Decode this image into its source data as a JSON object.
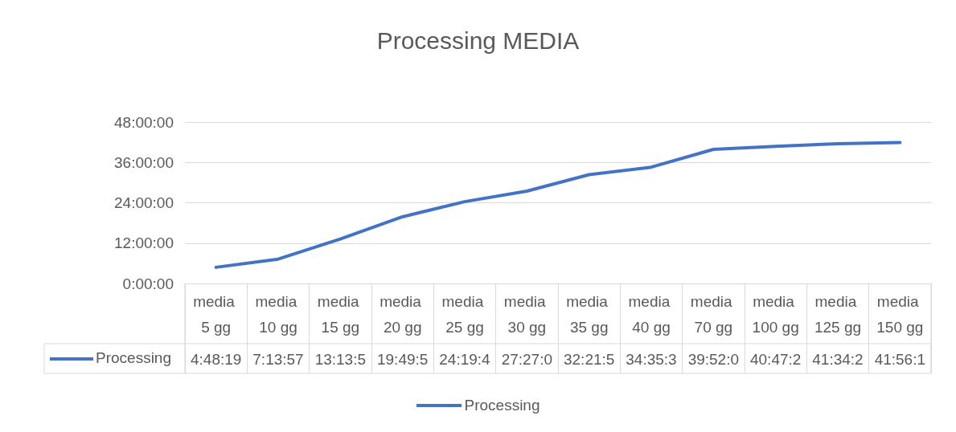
{
  "chart_data": {
    "type": "line",
    "title": "Processing MEDIA",
    "categories": [
      "media 5 gg",
      "media 10 gg",
      "media 15 gg",
      "media 20 gg",
      "media 25 gg",
      "media 30 gg",
      "media 35 gg",
      "media 40 gg",
      "media 70 gg",
      "media 100 gg",
      "media 125 gg",
      "media 150 gg"
    ],
    "series": [
      {
        "name": "Processing",
        "color": "#4472c4",
        "values": [
          4.805278,
          7.2325,
          13.23,
          19.83,
          24.33,
          27.45,
          32.36,
          34.59,
          39.87,
          40.79,
          41.57,
          41.94
        ],
        "value_labels": [
          "4:48:19",
          "7:13:57",
          "13:13:5",
          "19:49:5",
          "24:19:4",
          "27:27:0",
          "32:21:5",
          "34:35:3",
          "39:52:0",
          "40:47:2",
          "41:34:2",
          "41:56:1"
        ]
      }
    ],
    "ylim": [
      0,
      48
    ],
    "yticks": [
      {
        "value": 0,
        "label": "0:00:00"
      },
      {
        "value": 12,
        "label": "12:00:00"
      },
      {
        "value": 24,
        "label": "24:00:00"
      },
      {
        "value": 36,
        "label": "36:00:00"
      },
      {
        "value": 48,
        "label": "48:00:00"
      }
    ],
    "grid": "y",
    "legend": "bottom",
    "marker": "none",
    "line_style": "solid"
  }
}
